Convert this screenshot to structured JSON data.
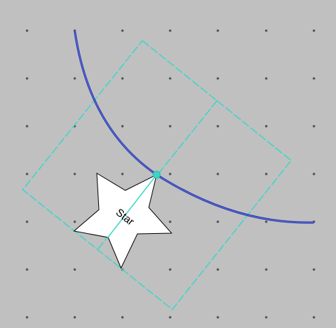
{
  "canvas": {
    "background_color": "#c0c0c0",
    "grid_dot_color": "#4a4a4a"
  },
  "arc": {
    "color": "#2233aa"
  },
  "selection": {
    "color": "#3cd6c8"
  },
  "star": {
    "label": "Star",
    "fill": "#ffffff",
    "stroke": "#000000"
  }
}
